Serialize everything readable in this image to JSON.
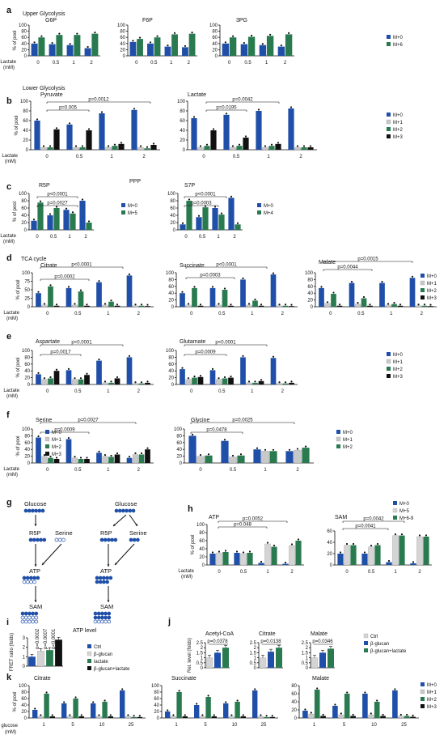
{
  "colors": {
    "blue": "#1f4fa8",
    "green": "#2a7a50",
    "gray": "#c8c8c8",
    "black": "#111111",
    "lightgray": "#d4d4d4"
  },
  "panel_letters": {
    "a": "a",
    "b": "b",
    "c": "c",
    "d": "d",
    "e": "e",
    "f": "f",
    "g": "g",
    "h": "h",
    "i": "i",
    "j": "j",
    "k": "k"
  },
  "common": {
    "y_label": "% of pool",
    "lactate_label_1": "Lactate",
    "lactate_label_2": "(mM)",
    "glucose_label_1": "glucose",
    "glucose_label_2": "(mM)",
    "lactate_doses": [
      "0",
      "0.5",
      "1",
      "2"
    ],
    "glucose_doses": [
      "1",
      "5",
      "10",
      "25"
    ]
  },
  "section_titles": {
    "upper": "Upper Glycolysis",
    "lower": "Lower Glycolysis",
    "ppp": "PPP",
    "tca": "TCA cycle"
  },
  "legends": {
    "m0m6": [
      "M+0",
      "M+6"
    ],
    "m0to3": [
      "M+0",
      "M+1",
      "M+2",
      "M+3"
    ],
    "m0m5": [
      "M+0",
      "M+5"
    ],
    "m0m4": [
      "M+0",
      "M+4"
    ],
    "m0to2": [
      "M+0",
      "M+1",
      "M+2"
    ],
    "h": [
      "M+0",
      "M+5",
      "M+6-9"
    ],
    "i": [
      "Ctrl",
      "β-glucan",
      "lactate",
      "β-glucan+lactate"
    ],
    "j": [
      "Ctrl",
      "β-glucan",
      "β-glucan+lactate"
    ]
  },
  "diagram": {
    "glucose": "Glucose",
    "r5p": "R5P",
    "serine": "Serine",
    "atp": "ATP",
    "sam": "SAM"
  },
  "chart_data": [
    {
      "panel": "a",
      "title": "G6P",
      "type": "bar",
      "categories": [
        "0",
        "0.5",
        "1",
        "2"
      ],
      "ylim": [
        0,
        100
      ],
      "yticks": [
        0,
        20,
        40,
        60,
        80,
        100
      ],
      "series": [
        {
          "name": "M+0",
          "values": [
            40,
            38,
            35,
            25
          ]
        },
        {
          "name": "M+6",
          "values": [
            60,
            68,
            68,
            72
          ]
        }
      ]
    },
    {
      "panel": "a",
      "title": "F6P",
      "type": "bar",
      "categories": [
        "0",
        "0.5",
        "1",
        "2"
      ],
      "ylim": [
        0,
        100
      ],
      "yticks": [
        0,
        20,
        40,
        60,
        80,
        100
      ],
      "series": [
        {
          "name": "M+0",
          "values": [
            45,
            40,
            30,
            28
          ]
        },
        {
          "name": "M+6",
          "values": [
            55,
            60,
            70,
            72
          ]
        }
      ]
    },
    {
      "panel": "a",
      "title": "3PG",
      "type": "bar",
      "categories": [
        "0",
        "0.5",
        "1",
        "2"
      ],
      "ylim": [
        0,
        100
      ],
      "yticks": [
        0,
        20,
        40,
        60,
        80,
        100
      ],
      "series": [
        {
          "name": "M+0",
          "values": [
            40,
            38,
            35,
            30
          ]
        },
        {
          "name": "M+6",
          "values": [
            60,
            62,
            65,
            70
          ]
        }
      ]
    },
    {
      "panel": "b",
      "title": "Pyruvate",
      "type": "bar",
      "categories": [
        "0",
        "0.5",
        "1",
        "2"
      ],
      "ylim": [
        0,
        100
      ],
      "yticks": [
        0,
        20,
        40,
        60,
        80,
        100
      ],
      "series": [
        {
          "name": "M+0",
          "values": [
            60,
            52,
            75,
            82
          ]
        },
        {
          "name": "M+1",
          "values": [
            5,
            5,
            5,
            5
          ]
        },
        {
          "name": "M+2",
          "values": [
            5,
            5,
            8,
            3
          ]
        },
        {
          "name": "M+3",
          "values": [
            42,
            40,
            12,
            10
          ]
        }
      ],
      "annotations": [
        "p=0.0012",
        "p=0.005"
      ]
    },
    {
      "panel": "b",
      "title": "Lactate",
      "type": "bar",
      "categories": [
        "0",
        "0.5",
        "1",
        "2"
      ],
      "ylim": [
        0,
        100
      ],
      "yticks": [
        0,
        20,
        40,
        60,
        80,
        100
      ],
      "series": [
        {
          "name": "M+0",
          "values": [
            65,
            72,
            80,
            85
          ]
        },
        {
          "name": "M+1",
          "values": [
            5,
            5,
            5,
            5
          ]
        },
        {
          "name": "M+2",
          "values": [
            8,
            8,
            8,
            5
          ]
        },
        {
          "name": "M+3",
          "values": [
            40,
            25,
            12,
            5
          ]
        }
      ],
      "annotations": [
        "p=0.0042",
        "p=0.0195"
      ]
    },
    {
      "panel": "c",
      "title": "R5P",
      "type": "bar",
      "categories": [
        "0",
        "0.5",
        "1",
        "2"
      ],
      "ylim": [
        0,
        100
      ],
      "yticks": [
        0,
        20,
        40,
        60,
        80,
        100
      ],
      "series": [
        {
          "name": "M+0",
          "values": [
            25,
            40,
            55,
            80
          ]
        },
        {
          "name": "M+5",
          "values": [
            75,
            60,
            45,
            20
          ]
        }
      ],
      "annotations": [
        "p<0.0001",
        "p=0.0027"
      ]
    },
    {
      "panel": "c",
      "title": "S7P",
      "type": "bar",
      "categories": [
        "0",
        "0.5",
        "1",
        "2"
      ],
      "ylim": [
        0,
        100
      ],
      "yticks": [
        0,
        20,
        40,
        60,
        80,
        100
      ],
      "series": [
        {
          "name": "M+0",
          "values": [
            15,
            35,
            60,
            88
          ]
        },
        {
          "name": "M+4",
          "values": [
            80,
            62,
            42,
            15
          ]
        }
      ],
      "annotations": [
        "p<0.0001",
        "p=0.0003"
      ]
    },
    {
      "panel": "d",
      "title": "Citrate",
      "type": "bar",
      "categories": [
        "0",
        "0.5",
        "1",
        "2"
      ],
      "ylim": [
        0,
        100
      ],
      "yticks": [
        0,
        25,
        50,
        75,
        100
      ],
      "series": [
        {
          "name": "M+0",
          "values": [
            40,
            55,
            72,
            92
          ]
        },
        {
          "name": "M+1",
          "values": [
            5,
            5,
            5,
            3
          ]
        },
        {
          "name": "M+2",
          "values": [
            60,
            45,
            15,
            3
          ]
        },
        {
          "name": "M+3",
          "values": [
            3,
            3,
            3,
            2
          ]
        }
      ],
      "annotations": [
        "p<0.0001",
        "p=0.0002"
      ]
    },
    {
      "panel": "d",
      "title": "Succinate",
      "type": "bar",
      "categories": [
        "0",
        "0.5",
        "1",
        "2"
      ],
      "ylim": [
        0,
        100
      ],
      "yticks": [
        0,
        20,
        40,
        60,
        80,
        100
      ],
      "series": [
        {
          "name": "M+0",
          "values": [
            40,
            55,
            80,
            95
          ]
        },
        {
          "name": "M+1",
          "values": [
            5,
            5,
            5,
            3
          ]
        },
        {
          "name": "M+2",
          "values": [
            55,
            50,
            18,
            3
          ]
        },
        {
          "name": "M+3",
          "values": [
            3,
            3,
            3,
            2
          ]
        }
      ],
      "annotations": [
        "p<0.0001",
        "p=0.0003"
      ]
    },
    {
      "panel": "d",
      "title": "Malate",
      "type": "bar",
      "categories": [
        "0",
        "0.5",
        "1",
        "2"
      ],
      "ylim": [
        0,
        100
      ],
      "yticks": [
        0,
        20,
        40,
        60,
        80,
        100
      ],
      "series": [
        {
          "name": "M+0",
          "values": [
            55,
            70,
            70,
            85
          ]
        },
        {
          "name": "M+1",
          "values": [
            10,
            8,
            5,
            3
          ]
        },
        {
          "name": "M+2",
          "values": [
            38,
            25,
            8,
            3
          ]
        },
        {
          "name": "M+3",
          "values": [
            3,
            3,
            3,
            2
          ]
        }
      ],
      "annotations": [
        "p=0.0015",
        "p=0.0044"
      ]
    },
    {
      "panel": "e",
      "title": "Aspartate",
      "type": "bar",
      "categories": [
        "0",
        "0.5",
        "1",
        "2"
      ],
      "ylim": [
        0,
        100
      ],
      "yticks": [
        0,
        20,
        40,
        60,
        80,
        100
      ],
      "series": [
        {
          "name": "M+0",
          "values": [
            30,
            42,
            70,
            80
          ]
        },
        {
          "name": "M+1",
          "values": [
            15,
            15,
            5,
            3
          ]
        },
        {
          "name": "M+2",
          "values": [
            18,
            15,
            5,
            3
          ]
        },
        {
          "name": "M+3",
          "values": [
            40,
            28,
            18,
            5
          ]
        }
      ],
      "annotations": [
        "p<0.0001",
        "p=0.0017"
      ]
    },
    {
      "panel": "e",
      "title": "Glutamate",
      "type": "bar",
      "categories": [
        "0",
        "0.5",
        "1",
        "2"
      ],
      "ylim": [
        0,
        100
      ],
      "yticks": [
        0,
        20,
        40,
        60,
        80,
        100
      ],
      "series": [
        {
          "name": "M+0",
          "values": [
            45,
            42,
            80,
            78
          ]
        },
        {
          "name": "M+1",
          "values": [
            15,
            15,
            5,
            3
          ]
        },
        {
          "name": "M+2",
          "values": [
            20,
            18,
            5,
            3
          ]
        },
        {
          "name": "M+3",
          "values": [
            22,
            20,
            10,
            5
          ]
        }
      ],
      "annotations": [
        "p<0.0001",
        "p=0.0009"
      ]
    },
    {
      "panel": "f",
      "title": "Serine",
      "type": "bar",
      "categories": [
        "0",
        "0.5",
        "1",
        "2"
      ],
      "ylim": [
        0,
        100
      ],
      "yticks": [
        0,
        20,
        40,
        60,
        80,
        100
      ],
      "series": [
        {
          "name": "M+0",
          "values": [
            75,
            70,
            30,
            15
          ]
        },
        {
          "name": "M+1",
          "values": [
            20,
            15,
            20,
            25
          ]
        },
        {
          "name": "M+2",
          "values": [
            15,
            12,
            18,
            25
          ]
        },
        {
          "name": "M+3",
          "values": [
            12,
            12,
            25,
            40
          ]
        }
      ],
      "annotations": [
        "p=0.0027",
        "p=0.0009"
      ]
    },
    {
      "panel": "f",
      "title": "Glycine",
      "type": "bar",
      "categories": [
        "0",
        "0.5",
        "1",
        "2"
      ],
      "ylim": [
        0,
        100
      ],
      "yticks": [
        0,
        20,
        40,
        60,
        80,
        100
      ],
      "series": [
        {
          "name": "M+0",
          "values": [
            80,
            65,
            40,
            35
          ]
        },
        {
          "name": "M+1",
          "values": [
            20,
            18,
            35,
            38
          ]
        },
        {
          "name": "M+2",
          "values": [
            22,
            22,
            35,
            45
          ]
        }
      ],
      "annotations": [
        "p=0.0025",
        "p=0.0478"
      ]
    },
    {
      "panel": "h",
      "title": "ATP",
      "type": "bar",
      "categories": [
        "0",
        "0.5",
        "1",
        "2"
      ],
      "ylim": [
        0,
        100
      ],
      "yticks": [
        0,
        20,
        40,
        60,
        80,
        100
      ],
      "series": [
        {
          "name": "M+0",
          "values": [
            28,
            30,
            5,
            3
          ]
        },
        {
          "name": "M+5",
          "values": [
            30,
            28,
            52,
            48
          ]
        },
        {
          "name": "M+6-9",
          "values": [
            32,
            30,
            45,
            60
          ]
        }
      ],
      "annotations": [
        "p=0.0052",
        "p=0.048"
      ]
    },
    {
      "panel": "h",
      "title": "SAM",
      "type": "bar",
      "categories": [
        "0",
        "0.5",
        "1",
        "2"
      ],
      "ylim": [
        0,
        60
      ],
      "yticks": [
        0,
        20,
        40,
        60
      ],
      "series": [
        {
          "name": "M+0",
          "values": [
            20,
            20,
            5,
            3
          ]
        },
        {
          "name": "M+5",
          "values": [
            35,
            32,
            52,
            50
          ]
        },
        {
          "name": "M+6-9",
          "values": [
            35,
            35,
            52,
            50
          ]
        }
      ],
      "annotations": [
        "p=0.0042",
        "p=0.0041"
      ]
    },
    {
      "panel": "i",
      "title": "ATP level",
      "type": "bar",
      "ylabel": "FRET ratio (folds)",
      "ylim": [
        0,
        3
      ],
      "yticks": [
        0,
        1,
        2,
        3
      ],
      "categories": [
        "Ctrl",
        "β-glucan",
        "lactate",
        "β-glucan+lactate"
      ],
      "values": [
        1.0,
        1.6,
        1.7,
        2.8
      ],
      "annotations": [
        "p=0.0002",
        "p=0.0007",
        "p<0.0001"
      ]
    },
    {
      "panel": "j",
      "title": "Acetyl-CoA",
      "type": "bar",
      "ylabel": "Rel. level (folds)",
      "ylim": [
        0,
        2.5
      ],
      "yticks": [
        0,
        0.5,
        1,
        1.5,
        2,
        2.5
      ],
      "categories": [
        "Ctrl",
        "β-glucan",
        "β-glucan+lactate"
      ],
      "values": [
        1.0,
        1.5,
        2.0
      ],
      "annotations": [
        "p=0.0378"
      ]
    },
    {
      "panel": "j",
      "title": "Citrate",
      "type": "bar",
      "ylim": [
        0,
        2.5
      ],
      "yticks": [
        0,
        0.5,
        1,
        1.5,
        2,
        2.5
      ],
      "categories": [
        "Ctrl",
        "β-glucan",
        "β-glucan+lactate"
      ],
      "values": [
        1.0,
        1.6,
        2.0
      ],
      "annotations": [
        "p=0.0138"
      ]
    },
    {
      "panel": "j",
      "title": "Malate",
      "type": "bar",
      "ylim": [
        0,
        2.5
      ],
      "yticks": [
        0,
        0.5,
        1,
        1.5,
        2,
        2.5
      ],
      "categories": [
        "Ctrl",
        "β-glucan",
        "β-glucan+lactate"
      ],
      "values": [
        1.0,
        1.5,
        1.9
      ],
      "annotations": [
        "p=0.0346"
      ]
    },
    {
      "panel": "k",
      "title": "Citrate",
      "type": "bar",
      "categories": [
        "1",
        "5",
        "10",
        "25"
      ],
      "ylim": [
        0,
        100
      ],
      "yticks": [
        0,
        20,
        40,
        60,
        80,
        100
      ],
      "series": [
        {
          "name": "M+0",
          "values": [
            25,
            45,
            45,
            85
          ]
        },
        {
          "name": "M+1",
          "values": [
            5,
            5,
            5,
            5
          ]
        },
        {
          "name": "M+2",
          "values": [
            75,
            60,
            50,
            3
          ]
        },
        {
          "name": "M+3",
          "values": [
            5,
            5,
            5,
            3
          ]
        }
      ]
    },
    {
      "panel": "k",
      "title": "Succinate",
      "type": "bar",
      "categories": [
        "1",
        "5",
        "10",
        "25"
      ],
      "ylim": [
        0,
        100
      ],
      "yticks": [
        0,
        20,
        40,
        60,
        80,
        100
      ],
      "series": [
        {
          "name": "M+0",
          "values": [
            20,
            40,
            45,
            85
          ]
        },
        {
          "name": "M+1",
          "values": [
            5,
            5,
            5,
            5
          ]
        },
        {
          "name": "M+2",
          "values": [
            80,
            65,
            50,
            3
          ]
        },
        {
          "name": "M+3",
          "values": [
            5,
            5,
            5,
            3
          ]
        }
      ]
    },
    {
      "panel": "k",
      "title": "Malate",
      "type": "bar",
      "categories": [
        "1",
        "5",
        "10",
        "25"
      ],
      "ylim": [
        0,
        80
      ],
      "yticks": [
        0,
        20,
        40,
        60,
        80
      ],
      "series": [
        {
          "name": "M+0",
          "values": [
            18,
            30,
            60,
            68
          ]
        },
        {
          "name": "M+1",
          "values": [
            10,
            8,
            8,
            5
          ]
        },
        {
          "name": "M+2",
          "values": [
            70,
            60,
            40,
            5
          ]
        },
        {
          "name": "M+3",
          "values": [
            5,
            5,
            5,
            3
          ]
        }
      ]
    }
  ]
}
